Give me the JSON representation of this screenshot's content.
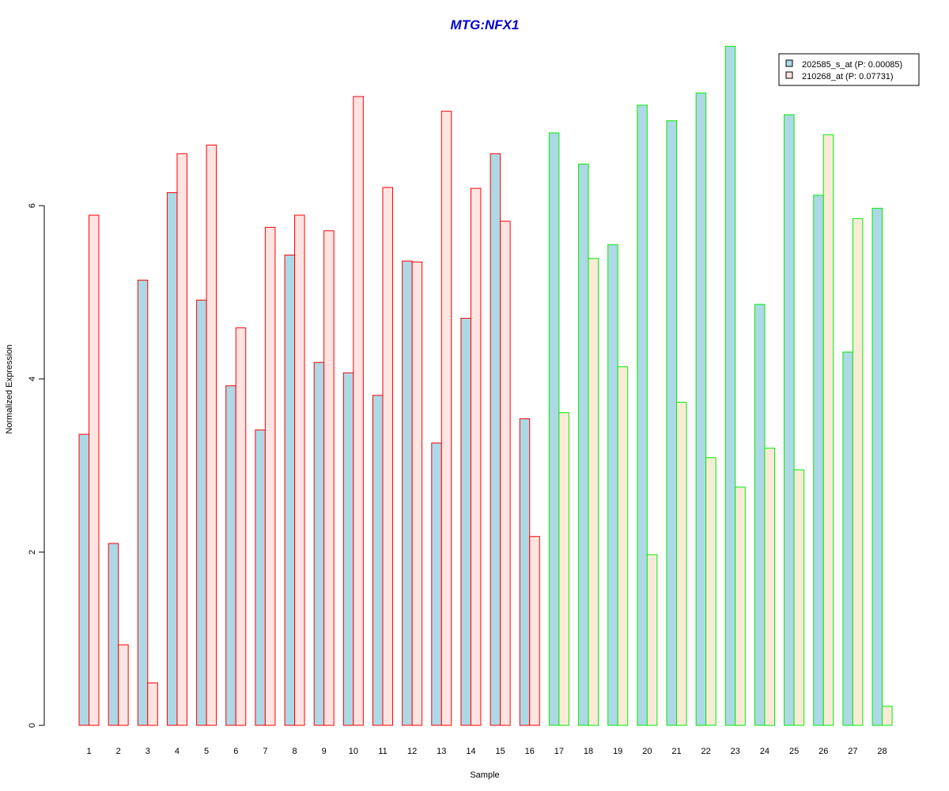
{
  "chart_data": {
    "type": "bar",
    "title": "MTG:NFX1",
    "xlabel": "Sample",
    "ylabel": "Normalized Expression",
    "ylim": [
      0,
      7.83
    ],
    "yticks": [
      "0",
      "2",
      "4",
      "6"
    ],
    "categories": [
      "1",
      "2",
      "3",
      "4",
      "5",
      "6",
      "7",
      "8",
      "9",
      "10",
      "11",
      "12",
      "13",
      "14",
      "15",
      "16",
      "17",
      "18",
      "19",
      "20",
      "21",
      "22",
      "23",
      "24",
      "25",
      "26",
      "27",
      "28"
    ],
    "group_of_sample": [
      "red",
      "red",
      "red",
      "red",
      "red",
      "red",
      "red",
      "red",
      "red",
      "red",
      "red",
      "red",
      "red",
      "red",
      "red",
      "red",
      "green",
      "green",
      "green",
      "green",
      "green",
      "green",
      "green",
      "green",
      "green",
      "green",
      "green",
      "green"
    ],
    "group_border_colors": {
      "red": "#ff0000",
      "green": "#00ee00"
    },
    "series": [
      {
        "name": "202585_s_at (P: 0.00085)",
        "fill": "#add8e6",
        "values": [
          3.36,
          2.1,
          5.14,
          6.15,
          4.91,
          3.92,
          3.41,
          5.43,
          4.19,
          4.07,
          3.81,
          5.36,
          3.26,
          4.7,
          6.6,
          3.54,
          6.84,
          6.48,
          5.55,
          7.16,
          6.98,
          7.3,
          7.84,
          4.86,
          7.05,
          6.12,
          4.31,
          5.97
        ]
      },
      {
        "name": "210268_at (P: 0.07731)",
        "fill_by_group": {
          "red": "#ffe4e1",
          "green": "#faebd7"
        },
        "values": [
          5.89,
          0.93,
          0.49,
          6.6,
          6.7,
          4.59,
          5.75,
          5.89,
          5.71,
          7.26,
          6.21,
          5.35,
          7.09,
          6.2,
          5.82,
          2.18,
          3.61,
          5.39,
          4.14,
          1.97,
          3.73,
          3.09,
          2.75,
          3.2,
          2.95,
          6.82,
          5.85,
          0.22
        ]
      }
    ],
    "legend": {
      "position": "top-right",
      "entries": [
        "202585_s_at (P: 0.00085)",
        "210268_at (P: 0.07731)"
      ],
      "swatches": [
        "#add8e6",
        "#ffe4e1"
      ]
    }
  }
}
